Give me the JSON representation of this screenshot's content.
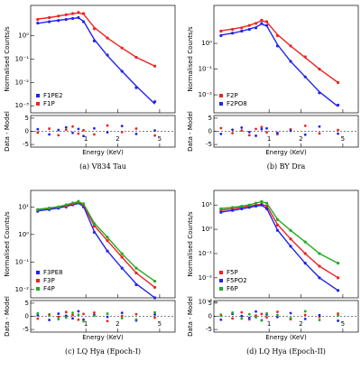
{
  "chart_data": [
    {
      "type": "scatter",
      "caption": "(a) V834 Tau",
      "xlabel": "Energy (KeV)",
      "ylabel": "Normalised Counts/s",
      "residual_label": "Data - Model",
      "log_x": true,
      "log_y": true,
      "legend": "lower left",
      "xlim": [
        0.3,
        7
      ],
      "xticks": [
        1,
        2,
        5
      ],
      "ylim": [
        0.0005,
        20
      ],
      "yticks": [
        {
          "value": 1,
          "label": "10⁰"
        },
        {
          "value": 0.1,
          "label": "10⁻¹"
        },
        {
          "value": 0.01,
          "label": "10⁻²"
        },
        {
          "value": 0.001,
          "label": "10⁻³"
        }
      ],
      "residual_ylim": [
        -6,
        6
      ],
      "residual_yticks": [
        5,
        0,
        -5
      ],
      "series": [
        {
          "name": "F1PE2",
          "color": "#2222ee",
          "x": [
            0.35,
            0.45,
            0.55,
            0.65,
            0.75,
            0.85,
            0.95,
            1.2,
            1.6,
            2.2,
            3,
            4.5
          ],
          "values": [
            3.5,
            4,
            4.5,
            5,
            5.5,
            6,
            4,
            0.6,
            0.15,
            0.03,
            0.006,
            0.0015
          ],
          "model": [
            3.4,
            4.1,
            4.6,
            5.1,
            5.6,
            5.8,
            4.2,
            0.7,
            0.14,
            0.03,
            0.007,
            0.0012
          ],
          "residuals": [
            0.8,
            -1.2,
            0.5,
            1.5,
            -0.6,
            0.9,
            -1.8,
            1.1,
            -0.4,
            2,
            -1,
            0.3
          ]
        },
        {
          "name": "F1P",
          "color": "#ee2222",
          "x": [
            0.35,
            0.45,
            0.55,
            0.65,
            0.75,
            0.85,
            0.95,
            1.2,
            1.6,
            2.2,
            3,
            4.5
          ],
          "values": [
            5,
            6,
            7,
            8,
            9,
            10,
            9,
            2,
            0.8,
            0.3,
            0.12,
            0.05
          ],
          "model": [
            5.2,
            6,
            7,
            8,
            8.8,
            9.5,
            8.5,
            2.3,
            0.8,
            0.3,
            0.12,
            0.05
          ],
          "residuals": [
            -0.5,
            1,
            -1.5,
            0.6,
            1.8,
            -0.9,
            0.4,
            -1.2,
            2.2,
            -0.3,
            1,
            -1.6
          ]
        }
      ]
    },
    {
      "type": "scatter",
      "caption": "(b) BY Dra",
      "xlabel": "Energy (KeV)",
      "ylabel": "Normalised Counts/s",
      "residual_label": "Data - Model",
      "log_x": true,
      "log_y": true,
      "legend": "lower left",
      "xlim": [
        0.3,
        7
      ],
      "xticks": [
        1,
        2,
        5
      ],
      "ylim": [
        0.002,
        30
      ],
      "yticks": [
        {
          "value": 1,
          "label": "10⁰"
        },
        {
          "value": 0.1,
          "label": "10⁻¹"
        },
        {
          "value": 0.01,
          "label": "10⁻²"
        }
      ],
      "residual_ylim": [
        -6,
        6
      ],
      "residual_yticks": [
        5,
        0,
        -5
      ],
      "series": [
        {
          "name": "F2P",
          "color": "#ee2222",
          "x": [
            0.35,
            0.45,
            0.55,
            0.65,
            0.75,
            0.85,
            0.95,
            1.2,
            1.6,
            2.2,
            3,
            4.5
          ],
          "values": [
            3,
            3.5,
            4,
            5,
            6,
            8,
            7,
            2,
            0.8,
            0.3,
            0.1,
            0.03
          ],
          "model": [
            3.1,
            3.6,
            4.2,
            5,
            6.2,
            7.6,
            6.8,
            2.2,
            0.8,
            0.28,
            0.1,
            0.03
          ],
          "residuals": [
            1.2,
            -0.7,
            0.3,
            -1.5,
            0.9,
            1.6,
            -0.4,
            -1.1,
            0.7,
            2.1,
            -0.8,
            0.5
          ]
        },
        {
          "name": "F2PO8",
          "color": "#2222ee",
          "x": [
            0.35,
            0.45,
            0.55,
            0.65,
            0.75,
            0.85,
            0.95,
            1.2,
            1.6,
            2.2,
            3,
            4.5
          ],
          "values": [
            2,
            2.5,
            3,
            3.5,
            4,
            6,
            5,
            0.8,
            0.2,
            0.05,
            0.012,
            0.004
          ],
          "model": [
            2.1,
            2.5,
            3,
            3.6,
            4.3,
            5.6,
            4.8,
            0.9,
            0.2,
            0.05,
            0.013,
            0.0035
          ],
          "residuals": [
            -1,
            0.6,
            1.4,
            -0.3,
            -1.7,
            0.8,
            1.1,
            -0.6,
            0.2,
            -1.3,
            1.8,
            -0.9
          ]
        }
      ]
    },
    {
      "type": "scatter",
      "caption": "(c) LQ Hya (Epoch-I)",
      "xlabel": "Energy (KeV)",
      "ylabel": "Normalised Counts/s",
      "residual_label": "Data - Model",
      "log_x": true,
      "log_y": true,
      "legend": "lower left",
      "xlim": [
        0.3,
        7
      ],
      "xticks": [
        1,
        2,
        5
      ],
      "ylim": [
        0.005,
        40
      ],
      "yticks": [
        {
          "value": 10,
          "label": "10¹"
        },
        {
          "value": 1,
          "label": "10⁰"
        },
        {
          "value": 0.1,
          "label": "10⁻¹"
        },
        {
          "value": 0.01,
          "label": "10⁻²"
        }
      ],
      "residual_ylim": [
        -6,
        6
      ],
      "residual_yticks": [
        5,
        0,
        -5
      ],
      "series": [
        {
          "name": "F3PE8",
          "color": "#2222ee",
          "x": [
            0.35,
            0.45,
            0.55,
            0.65,
            0.75,
            0.85,
            0.95,
            1.2,
            1.6,
            2.2,
            3,
            4.5
          ],
          "values": [
            7,
            8,
            9,
            10,
            12,
            14,
            10,
            1.2,
            0.25,
            0.06,
            0.015,
            0.005
          ],
          "model": [
            7.2,
            8.1,
            9.2,
            10.5,
            12,
            13.5,
            10.5,
            1.3,
            0.25,
            0.06,
            0.016,
            0.005
          ],
          "residuals": [
            0.4,
            -1.4,
            1,
            0.2,
            -0.8,
            1.9,
            -1.2,
            0.6,
            -0.2,
            1.3,
            -1.6,
            0.7
          ]
        },
        {
          "name": "F3P",
          "color": "#ee2222",
          "x": [
            0.35,
            0.45,
            0.55,
            0.65,
            0.75,
            0.85,
            0.95,
            1.2,
            1.6,
            2.2,
            3,
            4.5
          ],
          "values": [
            8,
            9,
            10,
            11,
            13,
            15,
            12,
            2,
            0.6,
            0.15,
            0.04,
            0.012
          ],
          "model": [
            8.1,
            9,
            10,
            11.5,
            13,
            14.5,
            12,
            2.1,
            0.6,
            0.15,
            0.04,
            0.012
          ],
          "residuals": [
            -0.9,
            0.7,
            -0.2,
            1.6,
            0.5,
            -1.3,
            0.9,
            1.4,
            -1.8,
            0.1,
            0.8,
            -0.5
          ]
        },
        {
          "name": "F4P",
          "color": "#22aa22",
          "x": [
            0.35,
            0.45,
            0.55,
            0.65,
            0.75,
            0.85,
            0.95,
            1.2,
            1.6,
            2.2,
            3,
            4.5
          ],
          "values": [
            8,
            9,
            10,
            12,
            14,
            16,
            13,
            2.5,
            0.8,
            0.2,
            0.06,
            0.02
          ],
          "model": [
            8.2,
            9.2,
            10.3,
            12,
            14,
            15.5,
            13,
            2.6,
            0.8,
            0.2,
            0.06,
            0.02
          ],
          "residuals": [
            1.1,
            0.3,
            -1.1,
            -0.5,
            1.3,
            0.6,
            -1.9,
            0.2,
            1,
            -0.7,
            -1.2,
            1.5
          ]
        }
      ]
    },
    {
      "type": "scatter",
      "caption": "(d) LQ Hya (Epoch-II)",
      "xlabel": "Energy (KeV)",
      "ylabel": "Normalised Counts/s",
      "residual_label": "Data - Model",
      "log_x": true,
      "log_y": true,
      "legend": "lower left",
      "xlim": [
        0.3,
        7
      ],
      "xticks": [
        1,
        2,
        5
      ],
      "ylim": [
        0.0015,
        40
      ],
      "yticks": [
        {
          "value": 10,
          "label": "10¹"
        },
        {
          "value": 1,
          "label": "10⁰"
        },
        {
          "value": 0.1,
          "label": "10⁻¹"
        },
        {
          "value": 0.01,
          "label": "10⁻²"
        },
        {
          "value": 0.001,
          "label": "10⁻³"
        }
      ],
      "residual_ylim": [
        -6,
        6
      ],
      "residual_yticks": [
        5,
        0,
        -5
      ],
      "series": [
        {
          "name": "F5P",
          "color": "#ee2222",
          "x": [
            0.35,
            0.45,
            0.55,
            0.65,
            0.75,
            0.85,
            0.95,
            1.2,
            1.6,
            2.2,
            3,
            4.5
          ],
          "values": [
            6,
            7,
            8,
            9,
            10,
            11,
            9,
            1.5,
            0.4,
            0.1,
            0.03,
            0.01
          ],
          "model": [
            6.1,
            7,
            8,
            9,
            10,
            10.8,
            9.2,
            1.6,
            0.4,
            0.1,
            0.03,
            0.01
          ],
          "residuals": [
            0.6,
            -0.8,
            1.5,
            -1.2,
            0.3,
            0.9,
            -0.4,
            1.7,
            -1.1,
            0.5,
            -0.2,
            1
          ]
        },
        {
          "name": "F5PO2",
          "color": "#2222ee",
          "x": [
            0.35,
            0.45,
            0.55,
            0.65,
            0.75,
            0.85,
            0.95,
            1.2,
            1.6,
            2.2,
            3,
            4.5
          ],
          "values": [
            5,
            6,
            7,
            8,
            9,
            10,
            7,
            0.9,
            0.2,
            0.04,
            0.01,
            0.003
          ],
          "model": [
            5.1,
            6,
            7,
            8,
            9,
            9.7,
            7.2,
            0.95,
            0.2,
            0.04,
            0.01,
            0.003
          ],
          "residuals": [
            -1.3,
            0.9,
            0.1,
            -0.6,
            1.8,
            -1.5,
            0.7,
            -0.3,
            1.2,
            -1,
            0.4,
            -1.7
          ]
        },
        {
          "name": "F6P",
          "color": "#22aa22",
          "x": [
            0.35,
            0.45,
            0.55,
            0.65,
            0.75,
            0.85,
            0.95,
            1.2,
            1.6,
            2.2,
            3,
            4.5
          ],
          "values": [
            7,
            8,
            9,
            10,
            12,
            14,
            12,
            2.5,
            0.9,
            0.3,
            0.1,
            0.04
          ],
          "model": [
            7.2,
            8,
            9,
            10.2,
            12,
            13.6,
            12,
            2.6,
            0.9,
            0.3,
            0.1,
            0.04
          ],
          "residuals": [
            0.2,
            1.4,
            -0.9,
            0.8,
            -0.4,
            -1.6,
            1.1,
            0.5,
            -0.7,
            1.9,
            -1.4,
            0.3
          ]
        }
      ]
    }
  ]
}
